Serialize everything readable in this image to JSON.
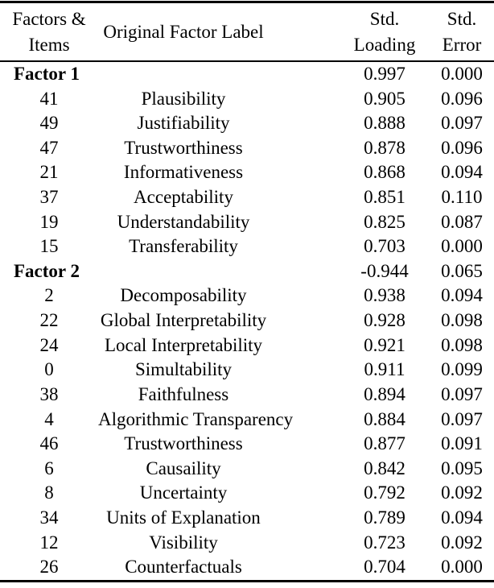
{
  "page": {
    "background_color": "#ffffff",
    "text_color": "#000000"
  },
  "table": {
    "header": {
      "col1": [
        "Factors &",
        "Items"
      ],
      "col2": "Original Factor Label",
      "col3": [
        "Std.",
        "Loading"
      ],
      "col4": [
        "Std.",
        "Error"
      ]
    },
    "rows": [
      {
        "type": "factor",
        "item": "Factor 1",
        "label": "",
        "loading": "0.997",
        "error": "0.000"
      },
      {
        "type": "item",
        "item": "41",
        "label": "Plausibility",
        "loading": "0.905",
        "error": "0.096"
      },
      {
        "type": "item",
        "item": "49",
        "label": "Justifiability",
        "loading": "0.888",
        "error": "0.097"
      },
      {
        "type": "item",
        "item": "47",
        "label": "Trustworthiness",
        "loading": "0.878",
        "error": "0.096"
      },
      {
        "type": "item",
        "item": "21",
        "label": "Informativeness",
        "loading": "0.868",
        "error": "0.094"
      },
      {
        "type": "item",
        "item": "37",
        "label": "Acceptability",
        "loading": "0.851",
        "error": "0.110"
      },
      {
        "type": "item",
        "item": "19",
        "label": "Understandability",
        "loading": "0.825",
        "error": "0.087"
      },
      {
        "type": "item",
        "item": "15",
        "label": "Transferability",
        "loading": "0.703",
        "error": "0.000"
      },
      {
        "type": "factor",
        "item": "Factor 2",
        "label": "",
        "loading": "-0.944",
        "error": "0.065"
      },
      {
        "type": "item",
        "item": "2",
        "label": "Decomposability",
        "loading": "0.938",
        "error": "0.094"
      },
      {
        "type": "item",
        "item": "22",
        "label": "Global Interpretability",
        "loading": "0.928",
        "error": "0.098"
      },
      {
        "type": "item",
        "item": "24",
        "label": "Local Interpretability",
        "loading": "0.921",
        "error": "0.098"
      },
      {
        "type": "item",
        "item": "0",
        "label": "Simultability",
        "loading": "0.911",
        "error": "0.099"
      },
      {
        "type": "item",
        "item": "38",
        "label": "Faithfulness",
        "loading": "0.894",
        "error": "0.097"
      },
      {
        "type": "item",
        "item": "4",
        "label": "Algorithmic Transparency",
        "loading": "0.884",
        "error": "0.097"
      },
      {
        "type": "item",
        "item": "46",
        "label": "Trustworthiness",
        "loading": "0.877",
        "error": "0.091"
      },
      {
        "type": "item",
        "item": "6",
        "label": "Causaility",
        "loading": "0.842",
        "error": "0.095"
      },
      {
        "type": "item",
        "item": "8",
        "label": "Uncertainty",
        "loading": "0.792",
        "error": "0.092"
      },
      {
        "type": "item",
        "item": "34",
        "label": "Units of Explanation",
        "loading": "0.789",
        "error": "0.094"
      },
      {
        "type": "item",
        "item": "12",
        "label": "Visibility",
        "loading": "0.723",
        "error": "0.092"
      },
      {
        "type": "item",
        "item": "26",
        "label": "Counterfactuals",
        "loading": "0.704",
        "error": "0.000"
      }
    ]
  }
}
